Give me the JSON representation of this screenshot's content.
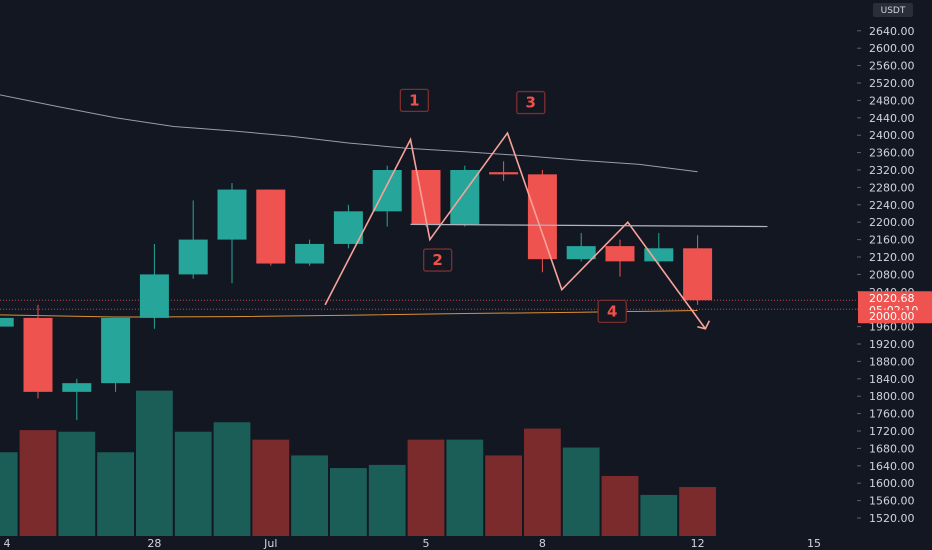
{
  "currency": "USDT",
  "price_label": {
    "price": "2020.68",
    "countdown": "05:02:10",
    "line_level": "2000.00"
  },
  "pattern_labels": [
    "1",
    "2",
    "3",
    "4"
  ],
  "colors": {
    "background": "#131722",
    "up": "#26a69a",
    "down": "#ef5350",
    "volume_up": "#1b5e58",
    "volume_down": "#7b2b2b",
    "drawing": "#f7a399",
    "ma": "#b2b5be",
    "ma2": "#f29d38",
    "label": "#f1514a"
  },
  "chart_data": {
    "type": "candlestick",
    "y_ticks": [
      1520,
      1560,
      1600,
      1640,
      1680,
      1720,
      1760,
      1800,
      1840,
      1880,
      1920,
      1960,
      2000,
      2040,
      2080,
      2120,
      2160,
      2200,
      2240,
      2280,
      2320,
      2360,
      2400,
      2440,
      2480,
      2520,
      2560,
      2600,
      2640
    ],
    "x_ticks": [
      {
        "label": "4",
        "index": -0.8
      },
      {
        "label": "28",
        "index": 3
      },
      {
        "label": "Jul",
        "index": 6
      },
      {
        "label": "5",
        "index": 10
      },
      {
        "label": "8",
        "index": 13
      },
      {
        "label": "12",
        "index": 17
      },
      {
        "label": "15",
        "index": 20
      }
    ],
    "candles": [
      {
        "index": -1,
        "open": 1960,
        "high": 1990,
        "low": 1950,
        "close": 1980
      },
      {
        "index": 0,
        "open": 1980,
        "high": 2010,
        "low": 1795,
        "close": 1810
      },
      {
        "index": 1,
        "open": 1810,
        "high": 1840,
        "low": 1745,
        "close": 1830
      },
      {
        "index": 2,
        "open": 1830,
        "high": 1980,
        "low": 1810,
        "close": 1980
      },
      {
        "index": 3,
        "open": 1980,
        "high": 2150,
        "low": 1955,
        "close": 2080
      },
      {
        "index": 4,
        "open": 2080,
        "high": 2250,
        "low": 2070,
        "close": 2160
      },
      {
        "index": 5,
        "open": 2160,
        "high": 2290,
        "low": 2060,
        "close": 2275
      },
      {
        "index": 6,
        "open": 2275,
        "high": 2275,
        "low": 2100,
        "close": 2105
      },
      {
        "index": 7,
        "open": 2105,
        "high": 2160,
        "low": 2100,
        "close": 2150
      },
      {
        "index": 8,
        "open": 2150,
        "high": 2240,
        "low": 2140,
        "close": 2225
      },
      {
        "index": 9,
        "open": 2225,
        "high": 2330,
        "low": 2190,
        "close": 2320
      },
      {
        "index": 10,
        "open": 2320,
        "high": 2320,
        "low": 2190,
        "close": 2195
      },
      {
        "index": 11,
        "open": 2195,
        "high": 2330,
        "low": 2190,
        "close": 2320
      },
      {
        "index": 12,
        "open": 2315,
        "high": 2340,
        "low": 2295,
        "close": 2310
      },
      {
        "index": 13,
        "open": 2310,
        "high": 2320,
        "low": 2085,
        "close": 2115
      },
      {
        "index": 14,
        "open": 2115,
        "high": 2175,
        "low": 2110,
        "close": 2145
      },
      {
        "index": 15,
        "open": 2145,
        "high": 2160,
        "low": 2075,
        "close": 2110
      },
      {
        "index": 16,
        "open": 2110,
        "high": 2175,
        "low": 2100,
        "close": 2140
      },
      {
        "index": 17,
        "open": 2140,
        "high": 2170,
        "low": 2010,
        "close": 2020.68
      }
    ],
    "volume": [
      {
        "index": -1,
        "rel": 0.53,
        "up": true
      },
      {
        "index": 0,
        "rel": 0.67,
        "up": false
      },
      {
        "index": 1,
        "rel": 0.66,
        "up": true
      },
      {
        "index": 2,
        "rel": 0.53,
        "up": true
      },
      {
        "index": 3,
        "rel": 0.92,
        "up": true
      },
      {
        "index": 4,
        "rel": 0.66,
        "up": true
      },
      {
        "index": 5,
        "rel": 0.72,
        "up": true
      },
      {
        "index": 6,
        "rel": 0.61,
        "up": false
      },
      {
        "index": 7,
        "rel": 0.51,
        "up": true
      },
      {
        "index": 8,
        "rel": 0.43,
        "up": true
      },
      {
        "index": 9,
        "rel": 0.45,
        "up": true
      },
      {
        "index": 10,
        "rel": 0.61,
        "up": false
      },
      {
        "index": 11,
        "rel": 0.61,
        "up": true
      },
      {
        "index": 12,
        "rel": 0.51,
        "up": false
      },
      {
        "index": 13,
        "rel": 0.68,
        "up": false
      },
      {
        "index": 14,
        "rel": 0.56,
        "up": true
      },
      {
        "index": 15,
        "rel": 0.38,
        "up": false
      },
      {
        "index": 16,
        "rel": 0.26,
        "up": true
      },
      {
        "index": 17,
        "rel": 0.31,
        "up": false
      }
    ],
    "ma_long": [
      {
        "index": -1,
        "value": 2493
      },
      {
        "index": 0.5,
        "value": 2466
      },
      {
        "index": 2,
        "value": 2440
      },
      {
        "index": 3.5,
        "value": 2420
      },
      {
        "index": 5,
        "value": 2410
      },
      {
        "index": 6.5,
        "value": 2398
      },
      {
        "index": 8,
        "value": 2382
      },
      {
        "index": 9.5,
        "value": 2370
      },
      {
        "index": 11,
        "value": 2362
      },
      {
        "index": 12.5,
        "value": 2353
      },
      {
        "index": 14,
        "value": 2342
      },
      {
        "index": 15.5,
        "value": 2333
      },
      {
        "index": 17,
        "value": 2316
      }
    ],
    "ma_short": [
      {
        "index": -1,
        "value": 1987
      },
      {
        "index": 2,
        "value": 1982
      },
      {
        "index": 5,
        "value": 1983
      },
      {
        "index": 8,
        "value": 1986
      },
      {
        "index": 11,
        "value": 1990
      },
      {
        "index": 14,
        "value": 1993
      },
      {
        "index": 17,
        "value": 1997
      }
    ],
    "pattern_path": [
      {
        "index": 7.4,
        "value": 2010
      },
      {
        "index": 9.6,
        "value": 2390
      },
      {
        "index": 10.1,
        "value": 2160
      },
      {
        "index": 12.1,
        "value": 2405
      },
      {
        "index": 13.5,
        "value": 2045
      },
      {
        "index": 15.2,
        "value": 2200
      },
      {
        "index": 17.2,
        "value": 1955
      }
    ],
    "neckline": [
      {
        "index": 9.6,
        "value": 2195
      },
      {
        "index": 18.8,
        "value": 2190
      }
    ],
    "label_positions": [
      {
        "index": 9.7,
        "value": 2480
      },
      {
        "index": 10.3,
        "value": 2113
      },
      {
        "index": 12.7,
        "value": 2475
      },
      {
        "index": 14.8,
        "value": 1995
      }
    ],
    "horizontal_levels": [
      2000,
      2020.68
    ]
  }
}
